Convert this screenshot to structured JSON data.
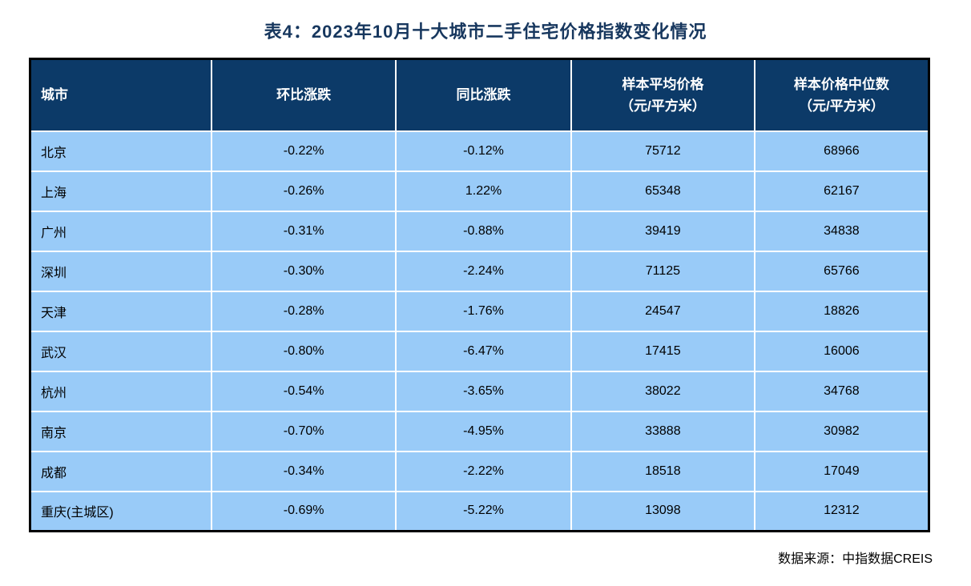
{
  "title": "表4：2023年10月十大城市二手住宅价格指数变化情况",
  "source_note": "数据来源：中指数据CREIS",
  "colors": {
    "header_bg": "#0C3A68",
    "header_text": "#FFFFFF",
    "row_bg": "#99CBF8",
    "cell_text": "#000000",
    "title_text": "#17375E",
    "outer_border": "#000000",
    "grid_lines": "#FFFFFF",
    "page_bg": "#FFFFFF"
  },
  "chart_data": {
    "type": "table",
    "title": "表4：2023年10月十大城市二手住宅价格指数变化情况",
    "columns": [
      {
        "label": "城市",
        "sublabel": "",
        "align": "left"
      },
      {
        "label": "环比涨跌",
        "sublabel": "",
        "align": "center"
      },
      {
        "label": "同比涨跌",
        "sublabel": "",
        "align": "center"
      },
      {
        "label": "样本平均价格",
        "sublabel": "（元/平方米）",
        "align": "center"
      },
      {
        "label": "样本价格中位数",
        "sublabel": "（元/平方米）",
        "align": "center"
      }
    ],
    "rows": [
      {
        "city": "北京",
        "mom": "-0.22%",
        "yoy": "-0.12%",
        "avg_price": "75712",
        "median_price": "68966"
      },
      {
        "city": "上海",
        "mom": "-0.26%",
        "yoy": "1.22%",
        "avg_price": "65348",
        "median_price": "62167"
      },
      {
        "city": "广州",
        "mom": "-0.31%",
        "yoy": "-0.88%",
        "avg_price": "39419",
        "median_price": "34838"
      },
      {
        "city": "深圳",
        "mom": "-0.30%",
        "yoy": "-2.24%",
        "avg_price": "71125",
        "median_price": "65766"
      },
      {
        "city": "天津",
        "mom": "-0.28%",
        "yoy": "-1.76%",
        "avg_price": "24547",
        "median_price": "18826"
      },
      {
        "city": "武汉",
        "mom": "-0.80%",
        "yoy": "-6.47%",
        "avg_price": "17415",
        "median_price": "16006"
      },
      {
        "city": "杭州",
        "mom": "-0.54%",
        "yoy": "-3.65%",
        "avg_price": "38022",
        "median_price": "34768"
      },
      {
        "city": "南京",
        "mom": "-0.70%",
        "yoy": "-4.95%",
        "avg_price": "33888",
        "median_price": "30982"
      },
      {
        "city": "成都",
        "mom": "-0.34%",
        "yoy": "-2.22%",
        "avg_price": "18518",
        "median_price": "17049"
      },
      {
        "city": "重庆(主城区)",
        "mom": "-0.69%",
        "yoy": "-5.22%",
        "avg_price": "13098",
        "median_price": "12312"
      }
    ]
  }
}
